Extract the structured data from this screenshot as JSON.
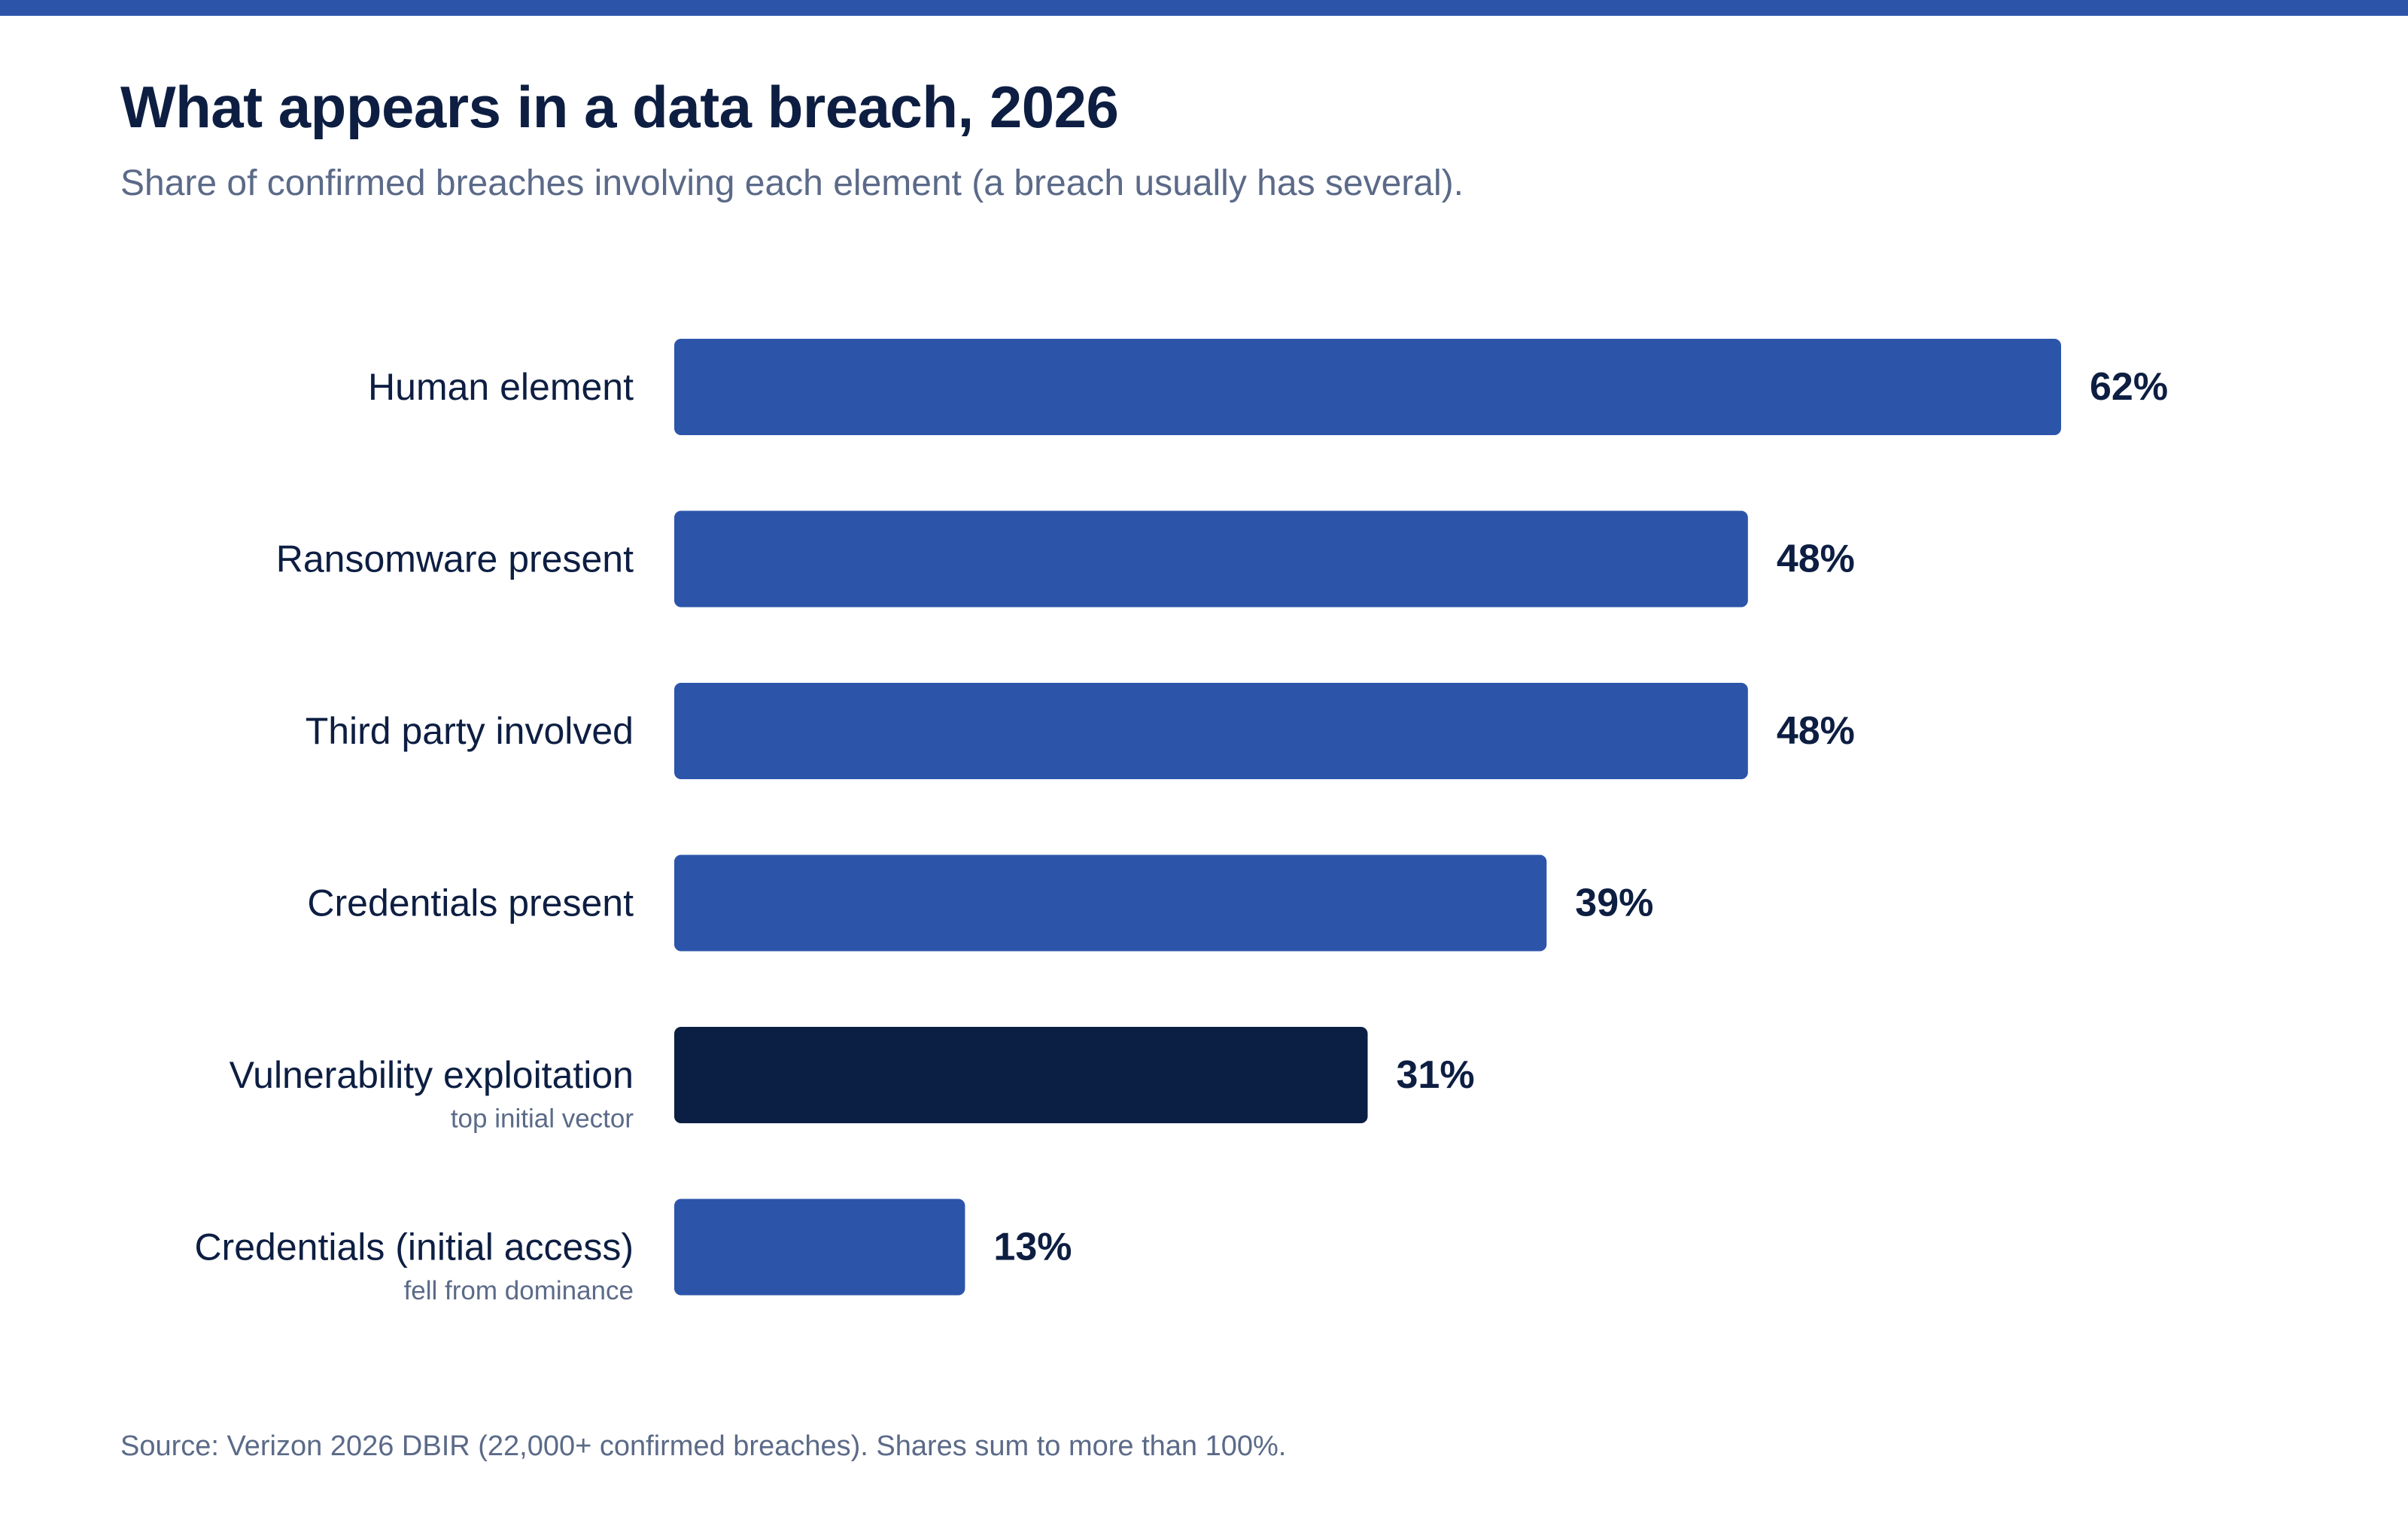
{
  "header": {
    "title": "What appears in a data breach, 2026",
    "subtitle": "Share of confirmed breaches involving each element (a breach usually has several)."
  },
  "footer": {
    "source": "Source: Verizon 2026 DBIR (22,000+ confirmed breaches). Shares sum to more than 100%."
  },
  "colors": {
    "accent": "#2c55aa",
    "highlight": "#0b1f44",
    "text": "#0d1e42",
    "muted": "#5b6a88"
  },
  "chart_data": {
    "type": "bar",
    "orientation": "horizontal",
    "title": "What appears in a data breach, 2026",
    "subtitle": "Share of confirmed breaches involving each element (a breach usually has several).",
    "categories": [
      "Human element",
      "Ransomware present",
      "Third party involved",
      "Credentials present",
      "Vulnerability exploitation",
      "Credentials (initial access)"
    ],
    "notes": [
      "",
      "",
      "",
      "",
      "top initial vector",
      "fell from dominance"
    ],
    "values": [
      62,
      48,
      48,
      39,
      31,
      13
    ],
    "value_labels": [
      "62%",
      "48%",
      "48%",
      "39%",
      "31%",
      "13%"
    ],
    "highlighted": [
      false,
      false,
      false,
      false,
      true,
      false
    ],
    "unit": "%",
    "xlim": [
      0,
      62
    ],
    "grid": false,
    "legend": "none"
  }
}
